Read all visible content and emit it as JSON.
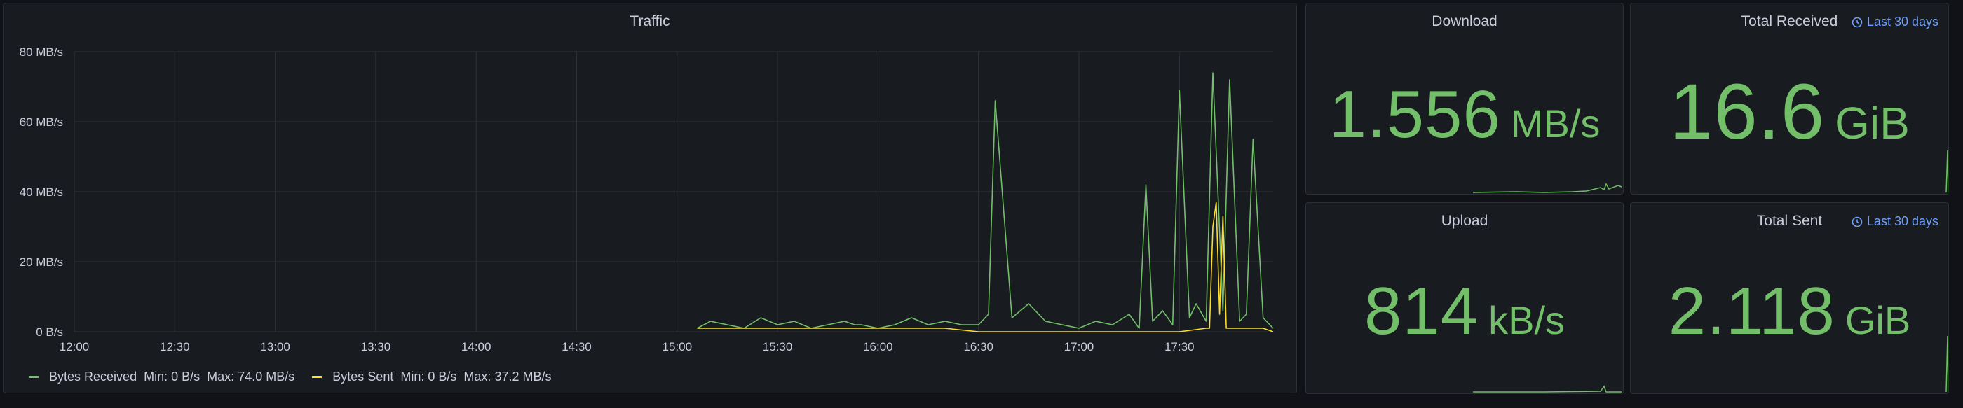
{
  "colors": {
    "received": "#73bf69",
    "sent": "#fade2a",
    "stat": "#73bf69",
    "link": "#6e9fff",
    "grid": "#2f3238",
    "text": "#ccccdc"
  },
  "traffic": {
    "title": "Traffic",
    "legend": [
      {
        "name": "Bytes Received",
        "min_label": "Min:",
        "min": "0 B/s",
        "max_label": "Max:",
        "max": "74.0 MB/s"
      },
      {
        "name": "Bytes Sent",
        "min_label": "Min:",
        "min": "0 B/s",
        "max_label": "Max:",
        "max": "37.2 MB/s"
      }
    ]
  },
  "download": {
    "title": "Download",
    "value": "1.556",
    "unit": "MB/s"
  },
  "upload": {
    "title": "Upload",
    "value": "814",
    "unit": "kB/s"
  },
  "total_received": {
    "title": "Total Received",
    "range": "Last 30 days",
    "value": "16.6",
    "unit": "GiB"
  },
  "total_sent": {
    "title": "Total Sent",
    "range": "Last 30 days",
    "value": "2.118",
    "unit": "GiB"
  },
  "chart_data": {
    "type": "line",
    "title": "Traffic",
    "x_ticks": [
      "12:00",
      "12:30",
      "13:00",
      "13:30",
      "14:00",
      "14:30",
      "15:00",
      "15:30",
      "16:00",
      "16:30",
      "17:00",
      "17:30"
    ],
    "y_ticks": [
      "0 B/s",
      "20 MB/s",
      "40 MB/s",
      "60 MB/s",
      "80 MB/s"
    ],
    "ylim": [
      0,
      80
    ],
    "xlim_minutes": [
      0,
      358
    ],
    "grid": true,
    "legend_position": "bottom-left",
    "series": [
      {
        "name": "Bytes Received",
        "x_minutes": [
          186,
          190,
          195,
          200,
          205,
          210,
          215,
          220,
          225,
          230,
          233,
          235,
          240,
          245,
          250,
          255,
          260,
          265,
          270,
          273,
          275,
          280,
          285,
          290,
          295,
          300,
          305,
          310,
          315,
          318,
          320,
          322,
          325,
          328,
          330,
          333,
          335,
          338,
          340,
          343,
          345,
          348,
          350,
          352,
          355,
          358
        ],
        "values": [
          1,
          3,
          2,
          1,
          4,
          2,
          3,
          1,
          2,
          3,
          2,
          2,
          1,
          2,
          4,
          2,
          3,
          2,
          2,
          5,
          66,
          4,
          8,
          3,
          2,
          1,
          3,
          2,
          5,
          1,
          42,
          3,
          6,
          2,
          69,
          4,
          8,
          3,
          74,
          6,
          72,
          3,
          5,
          55,
          4,
          1
        ]
      },
      {
        "name": "Bytes Sent",
        "x_minutes": [
          186,
          190,
          200,
          210,
          220,
          230,
          240,
          250,
          260,
          270,
          280,
          290,
          300,
          310,
          320,
          330,
          338,
          339,
          340,
          341,
          342,
          343,
          344,
          345,
          346,
          350,
          355,
          358
        ],
        "values": [
          1,
          1,
          1,
          1,
          1,
          1,
          1,
          1,
          1,
          0,
          0,
          0,
          0,
          0,
          0,
          0,
          1,
          1,
          30,
          37,
          5,
          33,
          1,
          1,
          1,
          1,
          1,
          0
        ]
      }
    ]
  }
}
